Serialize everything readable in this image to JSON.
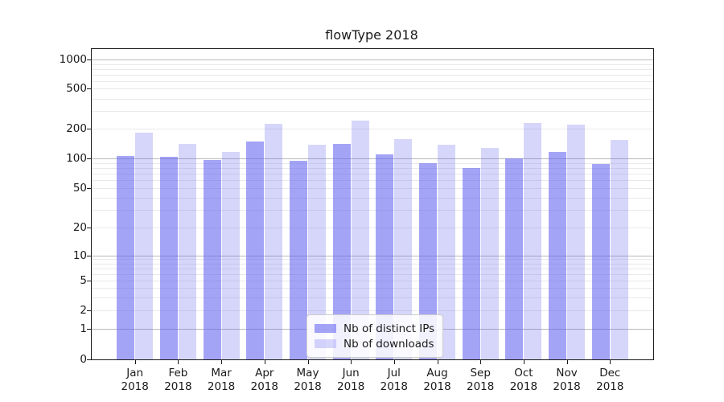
{
  "title": "flowType 2018",
  "colors": {
    "distinct_ips_bar": "rgba(104,104,242,0.60)",
    "downloads_bar": "rgba(104,104,242,0.27)",
    "major_grid": "#bababa",
    "minor_grid": "#e9e9e9",
    "axis": "#1a1a1a",
    "legend_border": "#cccccc"
  },
  "chart_data": {
    "type": "bar",
    "title": "flowType 2018",
    "yscale": "symlog",
    "grid": "horizontal-only",
    "legend_position": "lower-center",
    "categories": [
      "Jan",
      "Feb",
      "Mar",
      "Apr",
      "May",
      "Jun",
      "Jul",
      "Aug",
      "Sep",
      "Oct",
      "Nov",
      "Dec"
    ],
    "year_label": "2018",
    "series": [
      {
        "name": "Nb of distinct IPs",
        "values": [
          106,
          103,
          97,
          149,
          95,
          140,
          110,
          89,
          80,
          101,
          117,
          87
        ]
      },
      {
        "name": "Nb of downloads",
        "values": [
          183,
          141,
          116,
          226,
          137,
          240,
          157,
          139,
          128,
          230,
          219,
          154
        ]
      }
    ],
    "y_ticks": [
      0,
      1,
      2,
      5,
      10,
      20,
      50,
      100,
      200,
      500,
      1000
    ],
    "ylim": [
      0,
      1300
    ],
    "xlabel": "",
    "ylabel": ""
  }
}
